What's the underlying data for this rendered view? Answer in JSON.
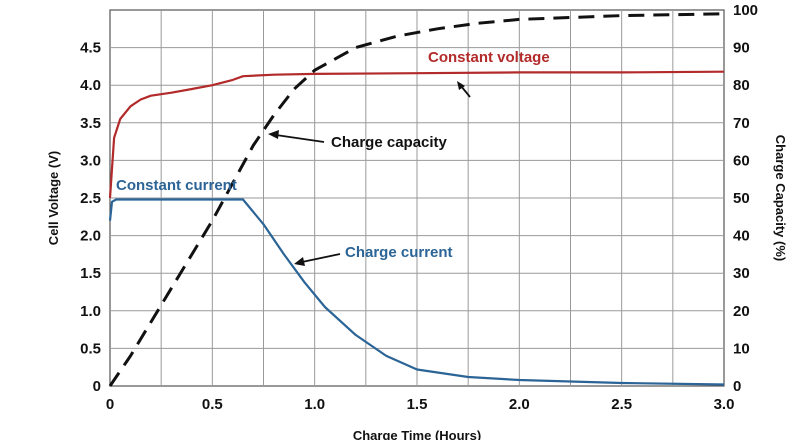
{
  "chart_data": {
    "type": "line",
    "xlabel": "Charge Time (Hours)",
    "ylabel_left": "Cell Voltage (V)",
    "ylabel_right": "Charge Capacity (%)",
    "xlim": [
      0,
      3.0
    ],
    "ylim_left": [
      0,
      5.0
    ],
    "ylim_right": [
      0,
      100
    ],
    "x_ticks": [
      "0",
      "0.5",
      "1.0",
      "1.5",
      "2.0",
      "2.5",
      "3.0"
    ],
    "x_tick_values": [
      0,
      0.5,
      1.0,
      1.5,
      2.0,
      2.5,
      3.0
    ],
    "y_left_ticks": [
      "0",
      "0.5",
      "1.0",
      "1.5",
      "2.0",
      "2.5",
      "3.0",
      "3.5",
      "4.0",
      "4.5"
    ],
    "y_left_tick_values": [
      0,
      0.5,
      1.0,
      1.5,
      2.0,
      2.5,
      3.0,
      3.5,
      4.0,
      4.5
    ],
    "y_right_ticks": [
      "0",
      "10",
      "20",
      "30",
      "40",
      "50",
      "60",
      "70",
      "80",
      "90",
      "100"
    ],
    "y_right_tick_values": [
      0,
      10,
      20,
      30,
      40,
      50,
      60,
      70,
      80,
      90,
      100
    ],
    "grid": true,
    "series": [
      {
        "axis": "left",
        "color": "#b22a2a",
        "style": "solid",
        "x": [
          0,
          0.02,
          0.05,
          0.1,
          0.15,
          0.2,
          0.3,
          0.4,
          0.5,
          0.6,
          0.65,
          0.8,
          1.0,
          1.5,
          2.0,
          2.5,
          3.0
        ],
        "y": [
          2.5,
          3.3,
          3.55,
          3.72,
          3.81,
          3.86,
          3.9,
          3.95,
          4.0,
          4.07,
          4.12,
          4.14,
          4.15,
          4.16,
          4.17,
          4.17,
          4.18
        ]
      },
      {
        "axis": "left",
        "color": "#2b6496",
        "style": "solid",
        "x": [
          0,
          0.01,
          0.03,
          0.1,
          0.3,
          0.5,
          0.65,
          0.75,
          0.85,
          0.95,
          1.05,
          1.2,
          1.35,
          1.5,
          1.75,
          2.0,
          2.5,
          3.0
        ],
        "y": [
          2.2,
          2.45,
          2.48,
          2.48,
          2.48,
          2.48,
          2.48,
          2.15,
          1.75,
          1.38,
          1.05,
          0.68,
          0.4,
          0.22,
          0.12,
          0.08,
          0.04,
          0.02
        ]
      },
      {
        "axis": "right",
        "color": "#111111",
        "style": "dashed",
        "x": [
          0,
          0.1,
          0.2,
          0.3,
          0.4,
          0.5,
          0.6,
          0.7,
          0.8,
          0.9,
          1.0,
          1.2,
          1.4,
          1.6,
          1.8,
          2.0,
          2.5,
          3.0
        ],
        "y": [
          0,
          8,
          17,
          26,
          35,
          44,
          54,
          64,
          72,
          79,
          84,
          90,
          93,
          95,
          96.5,
          97.5,
          98.5,
          99
        ]
      }
    ],
    "annotations": [
      {
        "text": "Constant voltage",
        "color": "#b22a2a"
      },
      {
        "text": "Constant current",
        "color": "#2b6496"
      },
      {
        "text": "Charge capacity",
        "color": "#111111"
      },
      {
        "text": "Charge current",
        "color": "#2b6496"
      }
    ]
  }
}
